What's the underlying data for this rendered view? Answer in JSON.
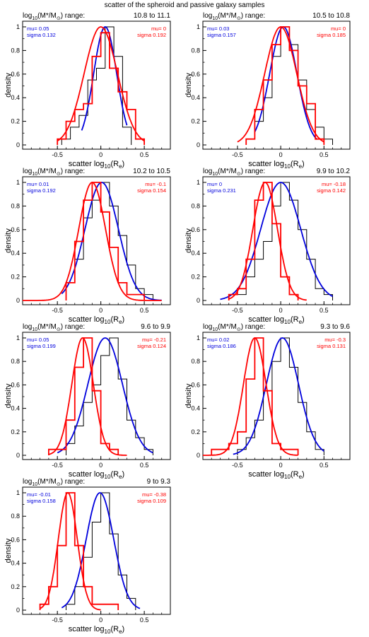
{
  "figure": {
    "title": "scatter of the spheroid and passive galaxy samples",
    "colors": {
      "spheroid": "#0000dd",
      "passive": "#ff0000",
      "histogram": "#000000",
      "axis": "#000000"
    }
  },
  "chart_data": [
    {
      "type": "line",
      "panel": "10.8-11.1",
      "header_prefix": "log",
      "header_sub": "10",
      "header_mid": "(M*/M",
      "header_sun": "⊙",
      "header_suffix": ") range:",
      "range": "10.8 to 11.1",
      "xlabel": "scatter log",
      "xlabel_sub": "10",
      "xlabel_arg": "(R",
      "xlabel_argsub": "e",
      "xlabel_close": ")",
      "ylabel": "density",
      "xlim": [
        -0.9,
        0.8
      ],
      "ylim": [
        0,
        1
      ],
      "xticks": [
        "-0.5",
        "0",
        "0.5"
      ],
      "yticks": [
        "0",
        "0.2",
        "0.4",
        "0.6",
        "0.8",
        "1"
      ],
      "series": [
        {
          "name": "spheroid",
          "color": "#0000dd",
          "mu_label": "mu= 0.05",
          "sigma_label": "sigma 0.132",
          "mu": 0.05,
          "sigma": 0.132,
          "fit_range": [
            -0.22,
            0.3
          ],
          "hist_edges": [
            -0.45,
            -0.35,
            -0.25,
            -0.15,
            -0.05,
            0.05,
            0.15,
            0.25,
            0.35
          ],
          "hist": [
            0.05,
            0.15,
            0.25,
            0.55,
            0.65,
            1.0,
            0.75,
            0.15
          ]
        },
        {
          "name": "passive",
          "color": "#ff0000",
          "mu_label": "mu= 0",
          "sigma_label": "sigma 0.192",
          "mu": 0.0,
          "sigma": 0.192,
          "fit_range": [
            -0.5,
            0.5
          ],
          "hist_edges": [
            -0.5,
            -0.4,
            -0.3,
            -0.2,
            -0.1,
            0.0,
            0.1,
            0.2,
            0.3,
            0.4,
            0.5
          ],
          "hist": [
            0.05,
            0.2,
            0.3,
            0.35,
            0.75,
            0.95,
            0.65,
            0.45,
            0.3,
            0.05
          ]
        }
      ]
    },
    {
      "type": "line",
      "panel": "10.5-10.8",
      "header_prefix": "log",
      "header_sub": "10",
      "header_mid": "(M*/M",
      "header_sun": "⊙",
      "header_suffix": ") range:",
      "range": "10.5 to 10.8",
      "xlabel": "scatter log",
      "xlabel_sub": "10",
      "xlabel_arg": "(R",
      "xlabel_argsub": "e",
      "xlabel_close": ")",
      "ylabel": "density",
      "xlim": [
        -0.9,
        0.8
      ],
      "ylim": [
        0,
        1
      ],
      "xticks": [
        "-0.5",
        "0",
        "0.5"
      ],
      "yticks": [
        "0",
        "0.2",
        "0.4",
        "0.6",
        "0.8",
        "1"
      ],
      "series": [
        {
          "name": "spheroid",
          "color": "#0000dd",
          "mu_label": "mu= 0.03",
          "sigma_label": "sigma 0.157",
          "mu": 0.03,
          "sigma": 0.157,
          "fit_range": [
            -0.3,
            0.42
          ],
          "hist_edges": [
            -0.4,
            -0.3,
            -0.2,
            -0.1,
            0.0,
            0.1,
            0.2,
            0.3,
            0.4,
            0.5,
            0.6
          ],
          "hist": [
            0.05,
            0.2,
            0.4,
            0.75,
            1.0,
            0.85,
            0.55,
            0.3,
            0.15,
            0.05
          ]
        },
        {
          "name": "passive",
          "color": "#ff0000",
          "mu_label": "mu= 0",
          "sigma_label": "sigma 0.185",
          "mu": 0.0,
          "sigma": 0.185,
          "fit_range": [
            -0.5,
            0.5
          ],
          "hist_edges": [
            -0.4,
            -0.3,
            -0.2,
            -0.1,
            0.0,
            0.1,
            0.2,
            0.3,
            0.4,
            0.5
          ],
          "hist": [
            0.05,
            0.3,
            0.55,
            0.85,
            1.0,
            0.8,
            0.5,
            0.35,
            0.05
          ]
        }
      ]
    },
    {
      "type": "line",
      "panel": "10.2-10.5",
      "header_prefix": "log",
      "header_sub": "10",
      "header_mid": "(M*/M",
      "header_sun": "⊙",
      "header_suffix": ") range:",
      "range": "10.2 to 10.5",
      "xlabel": "scatter log",
      "xlabel_sub": "10",
      "xlabel_arg": "(R",
      "xlabel_argsub": "e",
      "xlabel_close": ")",
      "ylabel": "density",
      "xlim": [
        -0.9,
        0.8
      ],
      "ylim": [
        0,
        1
      ],
      "xticks": [
        "-0.5",
        "0",
        "0.5"
      ],
      "yticks": [
        "0",
        "0.2",
        "0.4",
        "0.6",
        "0.8",
        "1"
      ],
      "series": [
        {
          "name": "spheroid",
          "color": "#0000dd",
          "mu_label": "mu= 0.01",
          "sigma_label": "sigma 0.192",
          "mu": 0.01,
          "sigma": 0.192,
          "fit_range": [
            -0.45,
            0.7
          ],
          "hist_edges": [
            -0.4,
            -0.3,
            -0.2,
            -0.1,
            0.0,
            0.1,
            0.2,
            0.3,
            0.4,
            0.5,
            0.6
          ],
          "hist": [
            0.15,
            0.35,
            0.7,
            0.85,
            1.0,
            0.8,
            0.55,
            0.3,
            0.1,
            0.05
          ]
        },
        {
          "name": "passive",
          "color": "#ff0000",
          "mu_label": "mu= -0.1",
          "sigma_label": "sigma 0.154",
          "mu": -0.1,
          "sigma": 0.154,
          "fit_range": [
            -0.9,
            0.7
          ],
          "hist_edges": [
            -0.4,
            -0.3,
            -0.2,
            -0.1,
            0.0,
            0.1,
            0.2,
            0.3,
            0.4,
            0.5
          ],
          "hist": [
            0.15,
            0.5,
            0.85,
            1.0,
            0.75,
            0.45,
            0.15,
            0.05,
            0.05
          ]
        }
      ]
    },
    {
      "type": "line",
      "panel": "9.9-10.2",
      "header_prefix": "log",
      "header_sub": "10",
      "header_mid": "(M*/M",
      "header_sun": "⊙",
      "header_suffix": ") range:",
      "range": "9.9 to 10.2",
      "xlabel": "scatter log",
      "xlabel_sub": "10",
      "xlabel_arg": "(R",
      "xlabel_argsub": "e",
      "xlabel_close": ")",
      "ylabel": "density",
      "xlim": [
        -0.9,
        0.8
      ],
      "ylim": [
        0,
        1
      ],
      "xticks": [
        "-0.5",
        "0",
        "0.5"
      ],
      "yticks": [
        "0",
        "0.2",
        "0.4",
        "0.6",
        "0.8",
        "1"
      ],
      "series": [
        {
          "name": "spheroid",
          "color": "#0000dd",
          "mu_label": "mu= 0",
          "sigma_label": "sigma 0.231",
          "mu": 0.0,
          "sigma": 0.231,
          "fit_range": [
            -0.7,
            0.6
          ],
          "hist_edges": [
            -0.6,
            -0.5,
            -0.4,
            -0.3,
            -0.2,
            -0.1,
            0.0,
            0.1,
            0.2,
            0.3,
            0.4,
            0.5,
            0.6
          ],
          "hist": [
            0.05,
            0.05,
            0.2,
            0.35,
            0.5,
            0.8,
            1.0,
            0.85,
            0.6,
            0.35,
            0.1,
            0.05
          ]
        },
        {
          "name": "passive",
          "color": "#ff0000",
          "mu_label": "mu= -0.18",
          "sigma_label": "sigma 0.142",
          "mu": -0.18,
          "sigma": 0.142,
          "fit_range": [
            -0.6,
            0.3
          ],
          "hist_edges": [
            -0.6,
            -0.5,
            -0.4,
            -0.3,
            -0.2,
            -0.1,
            0.0,
            0.1,
            0.2
          ],
          "hist": [
            0.05,
            0.1,
            0.35,
            0.85,
            1.0,
            0.65,
            0.2,
            0.05
          ]
        }
      ]
    },
    {
      "type": "line",
      "panel": "9.6-9.9",
      "header_prefix": "log",
      "header_sub": "10",
      "header_mid": "(M*/M",
      "header_sun": "⊙",
      "header_suffix": ") range:",
      "range": "9.6 to 9.9",
      "xlabel": "scatter log",
      "xlabel_sub": "10",
      "xlabel_arg": "(R",
      "xlabel_argsub": "e",
      "xlabel_close": ")",
      "ylabel": "density",
      "xlim": [
        -0.9,
        0.8
      ],
      "ylim": [
        0,
        1
      ],
      "xticks": [
        "-0.5",
        "0",
        "0.5"
      ],
      "yticks": [
        "0",
        "0.2",
        "0.4",
        "0.6",
        "0.8",
        "1"
      ],
      "series": [
        {
          "name": "spheroid",
          "color": "#0000dd",
          "mu_label": "mu= 0.05",
          "sigma_label": "sigma 0.199",
          "mu": 0.05,
          "sigma": 0.199,
          "fit_range": [
            -0.5,
            0.6
          ],
          "hist_edges": [
            -0.4,
            -0.3,
            -0.2,
            -0.1,
            0.0,
            0.1,
            0.2,
            0.3,
            0.4,
            0.5,
            0.6
          ],
          "hist": [
            0.1,
            0.25,
            0.45,
            0.6,
            0.85,
            1.0,
            0.65,
            0.3,
            0.15,
            0.05
          ]
        },
        {
          "name": "passive",
          "color": "#ff0000",
          "mu_label": "mu= -0.21",
          "sigma_label": "sigma 0.124",
          "mu": -0.21,
          "sigma": 0.124,
          "fit_range": [
            -0.6,
            0.3
          ],
          "hist_edges": [
            -0.6,
            -0.5,
            -0.4,
            -0.3,
            -0.2,
            -0.1,
            0.0,
            0.1,
            0.2
          ],
          "hist": [
            0.05,
            0.05,
            0.3,
            0.75,
            1.0,
            0.55,
            0.1,
            0.05
          ]
        }
      ]
    },
    {
      "type": "line",
      "panel": "9.3-9.6",
      "header_prefix": "log",
      "header_sub": "10",
      "header_mid": "(M*/M",
      "header_sun": "⊙",
      "header_suffix": ") range:",
      "range": "9.3 to 9.6",
      "xlabel": "scatter log",
      "xlabel_sub": "10",
      "xlabel_arg": "(R",
      "xlabel_argsub": "e",
      "xlabel_close": ")",
      "ylabel": "density",
      "xlim": [
        -0.9,
        0.8
      ],
      "ylim": [
        0,
        1
      ],
      "xticks": [
        "-0.5",
        "0",
        "0.5"
      ],
      "yticks": [
        "0",
        "0.2",
        "0.4",
        "0.6",
        "0.8",
        "1"
      ],
      "series": [
        {
          "name": "spheroid",
          "color": "#0000dd",
          "mu_label": "mu= 0.02",
          "sigma_label": "sigma 0.186",
          "mu": 0.02,
          "sigma": 0.186,
          "fit_range": [
            -0.55,
            0.5
          ],
          "hist_edges": [
            -0.5,
            -0.4,
            -0.3,
            -0.2,
            -0.1,
            0.0,
            0.1,
            0.2,
            0.3,
            0.4,
            0.5
          ],
          "hist": [
            0.05,
            0.15,
            0.3,
            0.55,
            0.8,
            1.0,
            0.75,
            0.45,
            0.2,
            0.05
          ]
        },
        {
          "name": "passive",
          "color": "#ff0000",
          "mu_label": "mu= -0.3",
          "sigma_label": "sigma 0.131",
          "mu": -0.3,
          "sigma": 0.131,
          "fit_range": [
            -0.9,
            0.2
          ],
          "hist_edges": [
            -0.8,
            -0.7,
            -0.6,
            -0.5,
            -0.4,
            -0.3,
            -0.2,
            -0.1,
            0.0,
            0.1,
            0.2
          ],
          "hist": [
            0.05,
            0.05,
            0.1,
            0.2,
            0.65,
            1.0,
            0.55,
            0.1,
            0.05,
            0.05
          ]
        }
      ]
    },
    {
      "type": "line",
      "panel": "9-9.3",
      "header_prefix": "log",
      "header_sub": "10",
      "header_mid": "(M*/M",
      "header_sun": "⊙",
      "header_suffix": ") range:",
      "range": "9 to 9.3",
      "xlabel": "scatter log",
      "xlabel_sub": "10",
      "xlabel_arg": "(R",
      "xlabel_argsub": "e",
      "xlabel_close": ")",
      "ylabel": "density",
      "xlim": [
        -0.9,
        0.8
      ],
      "ylim": [
        0,
        1
      ],
      "xticks": [
        "-0.5",
        "0",
        "0.5"
      ],
      "yticks": [
        "0",
        "0.2",
        "0.4",
        "0.6",
        "0.8",
        "1"
      ],
      "series": [
        {
          "name": "spheroid",
          "color": "#0000dd",
          "mu_label": "mu= -0.01",
          "sigma_label": "sigma 0.158",
          "mu": -0.01,
          "sigma": 0.158,
          "fit_range": [
            -0.45,
            0.45
          ],
          "hist_edges": [
            -0.4,
            -0.3,
            -0.2,
            -0.1,
            0.0,
            0.1,
            0.2,
            0.3,
            0.4
          ],
          "hist": [
            0.05,
            0.2,
            0.45,
            0.75,
            1.0,
            0.65,
            0.3,
            0.1
          ]
        },
        {
          "name": "passive",
          "color": "#ff0000",
          "mu_label": "mu= -0.38",
          "sigma_label": "sigma 0.109",
          "mu": -0.38,
          "sigma": 0.109,
          "fit_range": [
            -0.7,
            0.0
          ],
          "hist_edges": [
            -0.7,
            -0.6,
            -0.5,
            -0.4,
            -0.3,
            -0.2,
            -0.1,
            0.0,
            0.1,
            0.2
          ],
          "hist": [
            0.05,
            0.2,
            0.55,
            1.0,
            0.55,
            0.2,
            0.05,
            0.05,
            0.05
          ]
        }
      ]
    }
  ]
}
